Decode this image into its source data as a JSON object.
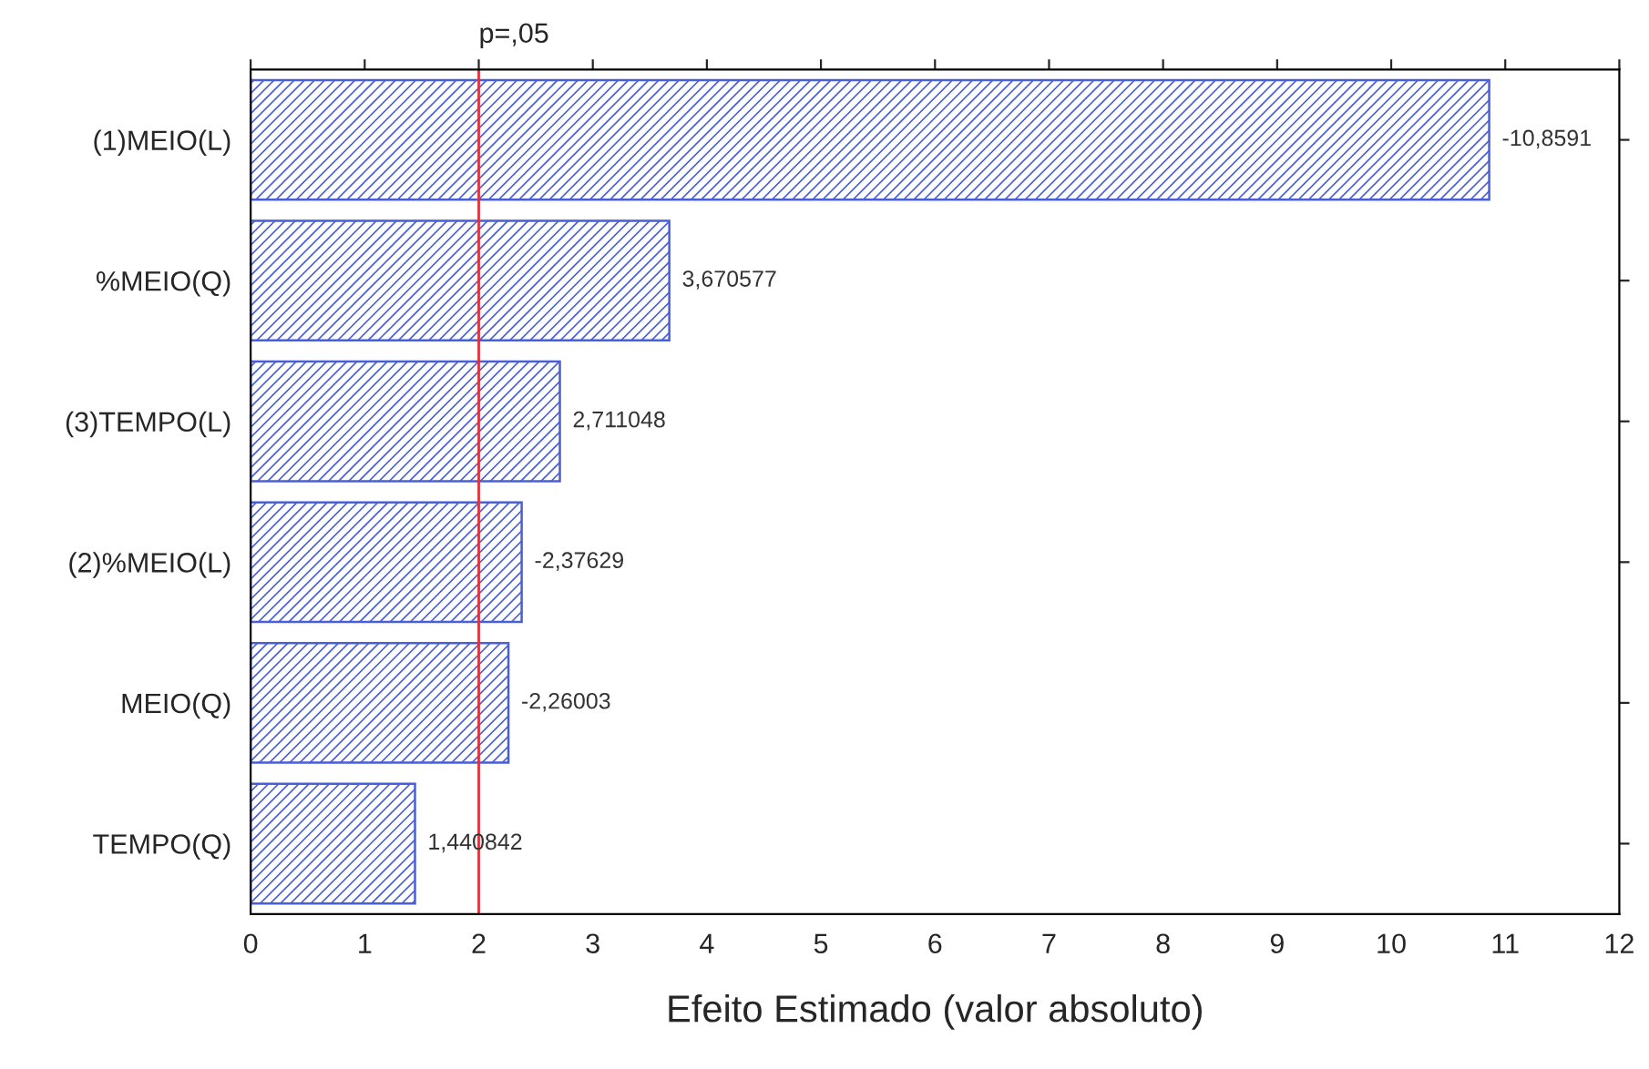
{
  "chart_data": {
    "type": "bar",
    "orientation": "horizontal",
    "categories": [
      "(1)MEIO(L)",
      "%MEIO(Q)",
      "(3)TEMPO(L)",
      "(2)%MEIO(L)",
      "MEIO(Q)",
      "TEMPO(Q)"
    ],
    "values": [
      10.8591,
      3.670577,
      2.711048,
      2.37629,
      2.26003,
      1.440842
    ],
    "value_labels": [
      "-10,8591",
      "3,670577",
      "2,711048",
      "-2,37629",
      "-2,26003",
      "1,440842"
    ],
    "color": "#4a5fd6",
    "xlim": [
      0,
      12
    ],
    "xticks": [
      0,
      1,
      2,
      3,
      4,
      5,
      6,
      7,
      8,
      9,
      10,
      11,
      12
    ],
    "xlabel": "Efeito Estimado (valor absoluto)",
    "ref_lines": [
      {
        "axis": "x",
        "value": 2.0,
        "label": "p=,05",
        "color": "#e0303a"
      }
    ],
    "grid": false
  }
}
